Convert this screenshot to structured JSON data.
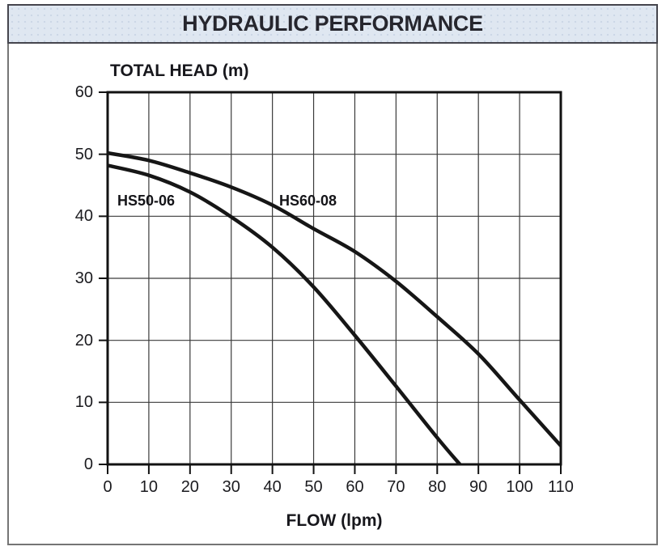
{
  "header": {
    "title": "HYDRAULIC PERFORMANCE"
  },
  "chart_data": {
    "type": "line",
    "title": "HYDRAULIC PERFORMANCE",
    "xlabel": "FLOW (lpm)",
    "ylabel": "TOTAL HEAD (m)",
    "xlim": [
      0,
      110
    ],
    "ylim": [
      0,
      60
    ],
    "x_ticks": [
      0,
      10,
      20,
      30,
      40,
      50,
      60,
      70,
      80,
      90,
      100,
      110
    ],
    "y_ticks": [
      0,
      10,
      20,
      30,
      40,
      50,
      60
    ],
    "grid": "on (every 10 in both axes)",
    "legend_position": "inline curve labels",
    "series": [
      {
        "name": "HS50-06",
        "x": [
          0,
          10,
          20,
          30,
          40,
          50,
          60,
          70,
          80,
          85.5
        ],
        "y": [
          48.2,
          46.6,
          43.9,
          39.9,
          35.0,
          28.6,
          20.8,
          12.6,
          4.3,
          0
        ]
      },
      {
        "name": "HS60-08",
        "x": [
          0,
          10,
          20,
          30,
          40,
          50,
          60,
          70,
          80,
          90,
          100,
          110
        ],
        "y": [
          50.2,
          49.0,
          47.0,
          44.7,
          41.8,
          38.0,
          34.3,
          29.5,
          23.8,
          17.8,
          10.4,
          3.0
        ]
      }
    ],
    "curve_color": "#161616",
    "grid_color": "#3a3a3a",
    "frame_color": "#121212"
  },
  "colors": {
    "title_bar_bg": "#dfe7f1",
    "title_text": "#26262e",
    "figure_border": "#757575"
  }
}
